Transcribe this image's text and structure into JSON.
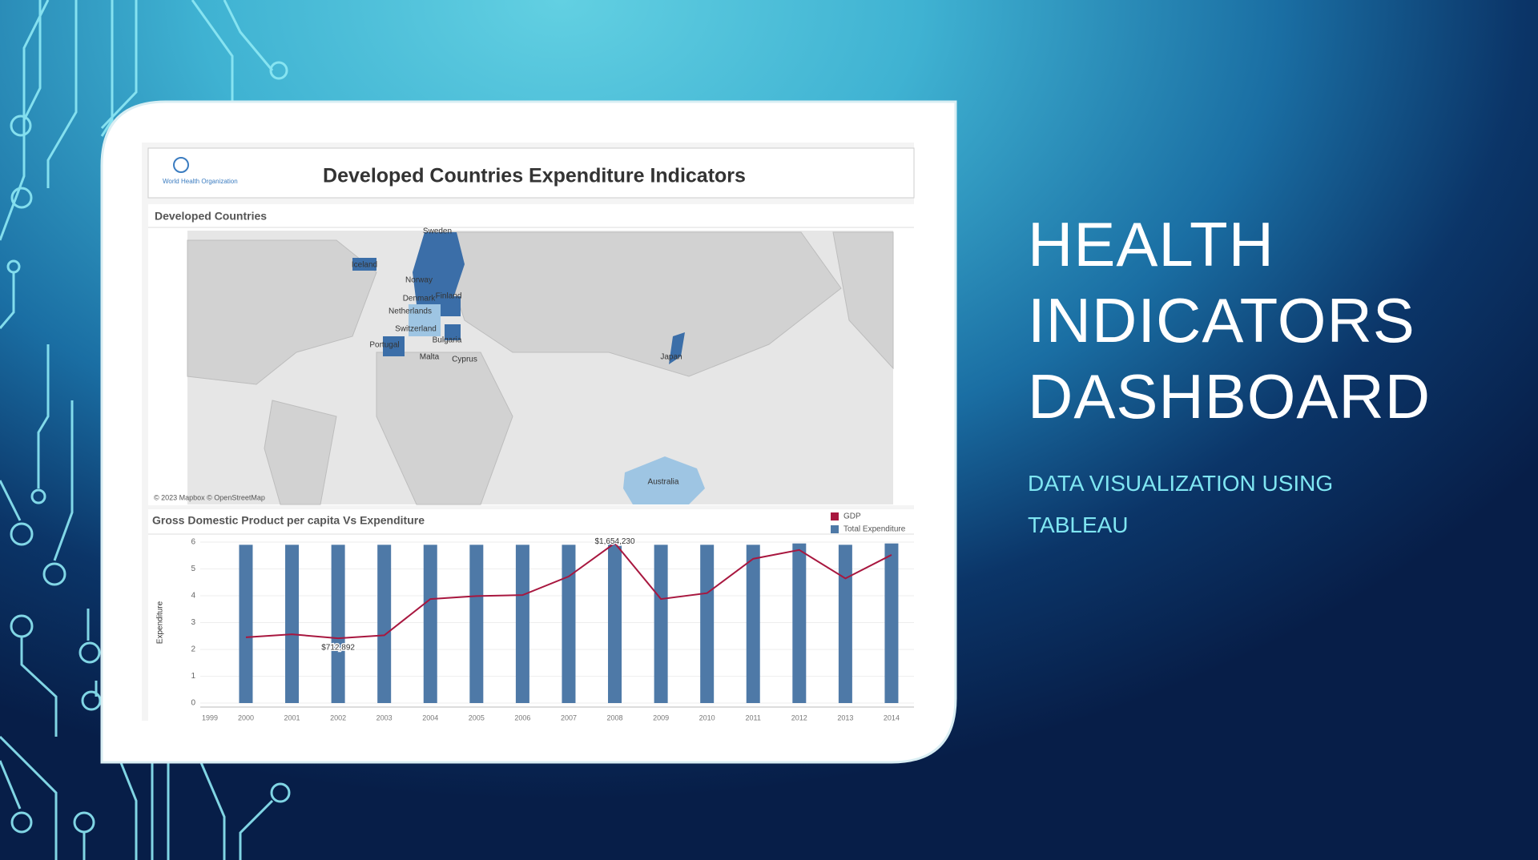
{
  "slide": {
    "title": "HEALTH INDICATORS DASHBOARD",
    "subtitle": "DATA VISUALIZATION USING TABLEAU"
  },
  "dashboard": {
    "logo": "World Health Organization",
    "title": "Developed Countries Expenditure Indicators",
    "map": {
      "title": "Developed Countries",
      "attribution": "© 2023 Mapbox © OpenStreetMap",
      "labels": [
        "Iceland",
        "Sweden",
        "Norway",
        "Finland",
        "Denmark",
        "Netherlands",
        "Switzerland",
        "Portugal",
        "Bulgaria",
        "Malta",
        "Cyprus",
        "Japan",
        "Australia"
      ]
    }
  },
  "chart_data": {
    "type": "bar",
    "title": "Gross Domestic Product per capita Vs Expenditure",
    "y_label": "Expenditure",
    "categories": [
      "1999",
      "2000",
      "2001",
      "2002",
      "2003",
      "2004",
      "2005",
      "2006",
      "2007",
      "2008",
      "2009",
      "2010",
      "2011",
      "2012",
      "2013",
      "2014"
    ],
    "series": [
      {
        "name": "GDP",
        "color": "#a8173f",
        "type": "line",
        "axis": "y2",
        "values": [
          null,
          722600,
          751700,
          712892,
          742000,
          1101100,
          1130200,
          1139900,
          1324300,
          1654230,
          1101100,
          1159300,
          1499000,
          1586300,
          1304900,
          1537800
        ],
        "value_labels": [
          null,
          null,
          null,
          "$712,892",
          null,
          null,
          null,
          null,
          null,
          "$1,654,230",
          null,
          null,
          null,
          null,
          null,
          null
        ]
      },
      {
        "name": "Total Expenditure",
        "color": "#4e79a7",
        "values": [
          null,
          5.9,
          5.9,
          5.9,
          5.9,
          5.9,
          5.9,
          5.9,
          5.9,
          5.95,
          5.9,
          5.9,
          5.9,
          5.95,
          5.9,
          5.95
        ]
      }
    ],
    "ylim": [
      0,
      6
    ],
    "yticks": [
      0,
      1,
      2,
      3,
      4,
      5,
      6
    ],
    "y2lim": [
      72000,
      1664000
    ],
    "grid": true
  }
}
